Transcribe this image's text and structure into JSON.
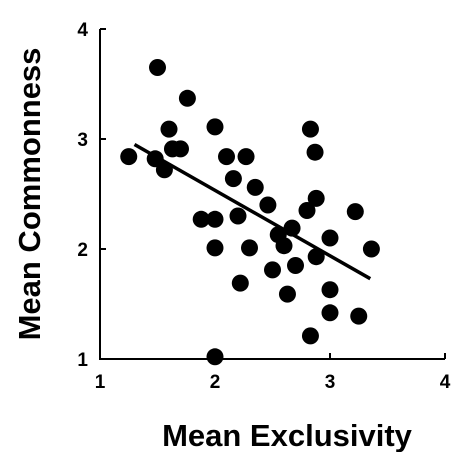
{
  "chart_data": {
    "type": "scatter",
    "xlabel": "Mean Exclusivity",
    "ylabel": "Mean Commonness",
    "xlim": [
      1,
      4
    ],
    "ylim": [
      1,
      4
    ],
    "x_ticks": [
      "1",
      "2",
      "3",
      "4"
    ],
    "y_ticks": [
      "1",
      "2",
      "3",
      "4"
    ],
    "grid": false,
    "legend": "none",
    "colors": {
      "points": "#000000",
      "axes": "#000000",
      "trendline": "#000000"
    },
    "points": [
      {
        "x": 1.25,
        "y": 2.84
      },
      {
        "x": 1.5,
        "y": 3.65
      },
      {
        "x": 1.48,
        "y": 2.82
      },
      {
        "x": 1.56,
        "y": 2.72
      },
      {
        "x": 1.6,
        "y": 3.09
      },
      {
        "x": 1.63,
        "y": 2.91
      },
      {
        "x": 1.7,
        "y": 2.91
      },
      {
        "x": 1.76,
        "y": 3.37
      },
      {
        "x": 1.88,
        "y": 2.27
      },
      {
        "x": 2.0,
        "y": 3.11
      },
      {
        "x": 2.0,
        "y": 2.27
      },
      {
        "x": 2.0,
        "y": 2.01
      },
      {
        "x": 2.0,
        "y": 1.02
      },
      {
        "x": 2.1,
        "y": 2.84
      },
      {
        "x": 2.16,
        "y": 2.64
      },
      {
        "x": 2.2,
        "y": 2.3
      },
      {
        "x": 2.22,
        "y": 1.69
      },
      {
        "x": 2.27,
        "y": 2.84
      },
      {
        "x": 2.3,
        "y": 2.01
      },
      {
        "x": 2.35,
        "y": 2.56
      },
      {
        "x": 2.46,
        "y": 2.4
      },
      {
        "x": 2.5,
        "y": 1.81
      },
      {
        "x": 2.55,
        "y": 2.13
      },
      {
        "x": 2.6,
        "y": 2.03
      },
      {
        "x": 2.63,
        "y": 1.59
      },
      {
        "x": 2.67,
        "y": 2.19
      },
      {
        "x": 2.7,
        "y": 1.85
      },
      {
        "x": 2.8,
        "y": 2.35
      },
      {
        "x": 2.83,
        "y": 3.09
      },
      {
        "x": 2.83,
        "y": 1.21
      },
      {
        "x": 2.87,
        "y": 2.88
      },
      {
        "x": 2.88,
        "y": 2.46
      },
      {
        "x": 2.88,
        "y": 1.93
      },
      {
        "x": 3.0,
        "y": 2.1
      },
      {
        "x": 3.0,
        "y": 1.63
      },
      {
        "x": 3.0,
        "y": 1.42
      },
      {
        "x": 3.22,
        "y": 2.34
      },
      {
        "x": 3.25,
        "y": 1.39
      },
      {
        "x": 3.36,
        "y": 2.0
      }
    ],
    "trendline": {
      "x": [
        1.3,
        3.35
      ],
      "y": [
        2.95,
        1.73
      ]
    }
  }
}
